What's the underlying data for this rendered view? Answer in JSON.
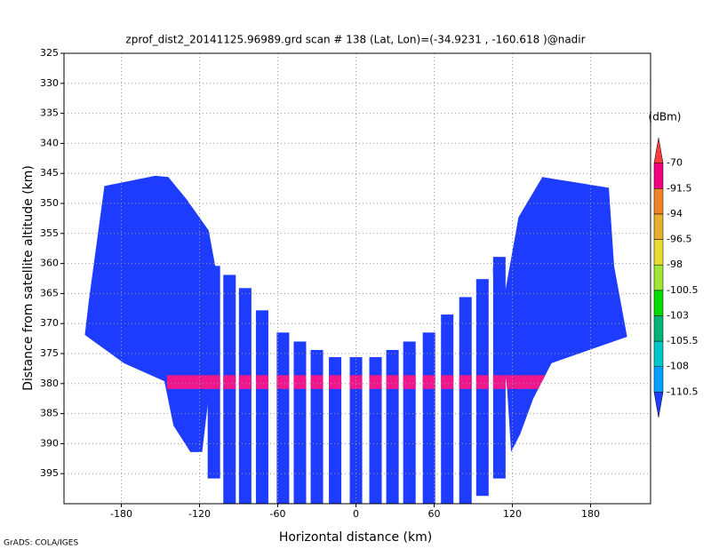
{
  "chart_data": {
    "type": "swath",
    "title": "zprof_dist2_20141125.96989.grd  scan # 138  (Lat, Lon)=(-34.9231 , -160.618 )@nadir",
    "x_label": "Horizontal distance  (km)",
    "y_label": "Distance from satellite altitude  (km)",
    "footer": "GrADS: COLA/IGES",
    "xlim": [
      -224,
      226
    ],
    "ylim": [
      400,
      325
    ],
    "xticks": [
      -180,
      -120,
      -60,
      0,
      60,
      120,
      180
    ],
    "yticks": [
      325,
      330,
      335,
      340,
      345,
      350,
      355,
      360,
      365,
      370,
      375,
      380,
      385,
      390,
      395
    ],
    "grid": true,
    "swath_color": "#1e3cff",
    "wings": [
      {
        "x": [
          -193,
          -154,
          -144,
          -130,
          -113,
          -108,
          -110,
          -118,
          -127,
          -140,
          -147,
          -178,
          -208,
          -205
        ],
        "y": [
          347.1,
          345.4,
          345.6,
          349.3,
          354.5,
          360.4,
          376.6,
          391.4,
          391.4,
          387,
          379.6,
          376.6,
          371.9,
          366.3
        ]
      },
      {
        "x": [
          105,
          107,
          124.7,
          143,
          194,
          198,
          208,
          150,
          136,
          126,
          119,
          116
        ],
        "y": [
          360.4,
          373.7,
          352.3,
          345.6,
          347.4,
          360.4,
          372.2,
          376.6,
          382.5,
          388.4,
          391.4,
          381
        ]
      }
    ],
    "stripes": {
      "x": [
        -109,
        -97,
        -85,
        -72,
        -56,
        -43,
        -30,
        -16,
        0,
        15,
        28,
        41,
        56,
        70,
        84,
        97,
        110
      ],
      "top": [
        360.4,
        361.9,
        364.1,
        367.8,
        371.5,
        373,
        374.4,
        375.6,
        375.6,
        375.6,
        374.4,
        373,
        371.5,
        368.5,
        365.6,
        362.6,
        358.9
      ],
      "bottom": [
        395.8,
        400,
        400,
        400,
        400,
        400,
        400,
        400,
        400,
        400,
        400,
        400,
        400,
        400,
        400,
        398.7,
        395.8
      ]
    },
    "surface_echo": {
      "x": [
        -145,
        145
      ],
      "y": [
        378.6,
        380.9
      ],
      "color": "#f0168c"
    },
    "colorbar": {
      "unit": "(dBm)",
      "levels": [
        -110.5,
        -108,
        -105.5,
        -103,
        -100.5,
        -98,
        -96.5,
        -94,
        -91.5,
        -70
      ],
      "colors": [
        "#1e3cff",
        "#00a0ff",
        "#00c8c8",
        "#00b478",
        "#00dc00",
        "#a0e632",
        "#e6dc32",
        "#e6af2d",
        "#f08228",
        "#f00082",
        "#fa3c3c"
      ]
    }
  }
}
